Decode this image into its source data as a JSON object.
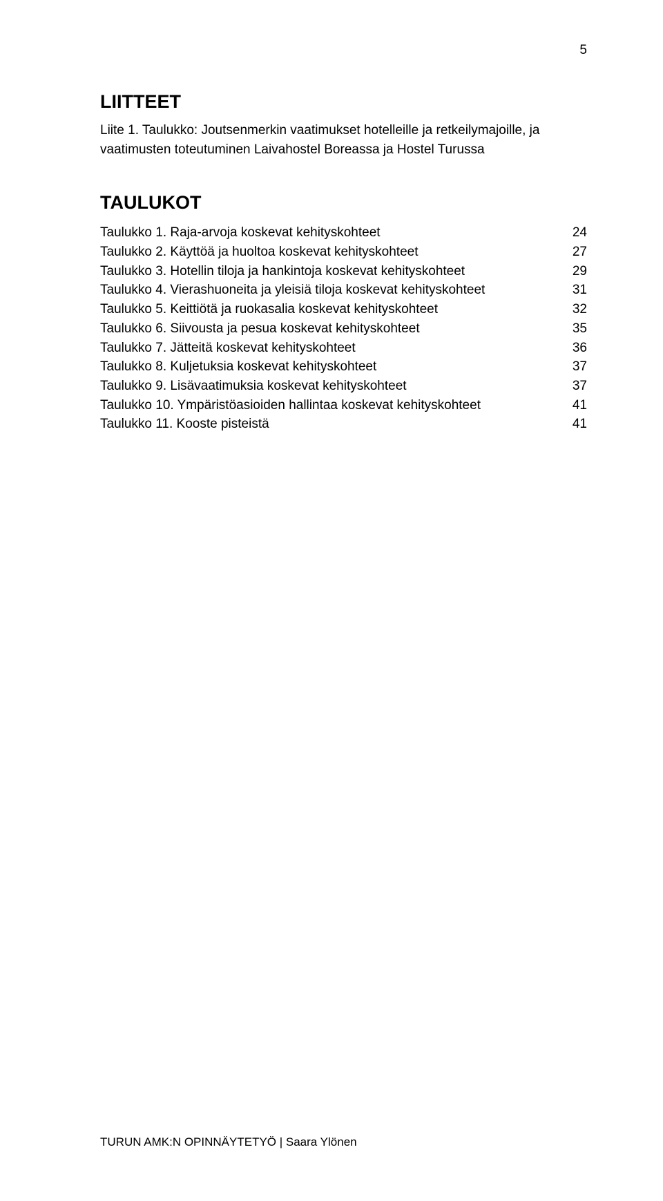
{
  "page_number": "5",
  "liitteet": {
    "heading": "LIITTEET",
    "item": "Liite 1. Taulukko: Joutsenmerkin vaatimukset hotelleille ja retkeilymajoille, ja vaatimusten toteutuminen Laivahostel Boreassa ja Hostel Turussa"
  },
  "taulukot": {
    "heading": "TAULUKOT",
    "entries": [
      {
        "label": "Taulukko 1. Raja-arvoja koskevat kehityskohteet",
        "page": "24"
      },
      {
        "label": "Taulukko 2. Käyttöä ja huoltoa koskevat kehityskohteet",
        "page": "27"
      },
      {
        "label": "Taulukko 3. Hotellin tiloja ja hankintoja koskevat kehityskohteet",
        "page": "29"
      },
      {
        "label": "Taulukko 4. Vierashuoneita ja yleisiä tiloja koskevat kehityskohteet",
        "page": "31"
      },
      {
        "label": "Taulukko 5. Keittiötä ja ruokasalia koskevat kehityskohteet",
        "page": "32"
      },
      {
        "label": "Taulukko 6. Siivousta ja pesua koskevat kehityskohteet",
        "page": "35"
      },
      {
        "label": "Taulukko 7. Jätteitä koskevat kehityskohteet",
        "page": "36"
      },
      {
        "label": "Taulukko 8. Kuljetuksia koskevat kehityskohteet",
        "page": "37"
      },
      {
        "label": "Taulukko 9. Lisävaatimuksia koskevat kehityskohteet",
        "page": "37"
      },
      {
        "label": "Taulukko 10. Ympäristöasioiden hallintaa koskevat kehityskohteet",
        "page": "41"
      },
      {
        "label": "Taulukko 11. Kooste pisteistä",
        "page": "41"
      }
    ]
  },
  "footer": "TURUN AMK:N OPINNÄYTETYÖ | Saara Ylönen"
}
